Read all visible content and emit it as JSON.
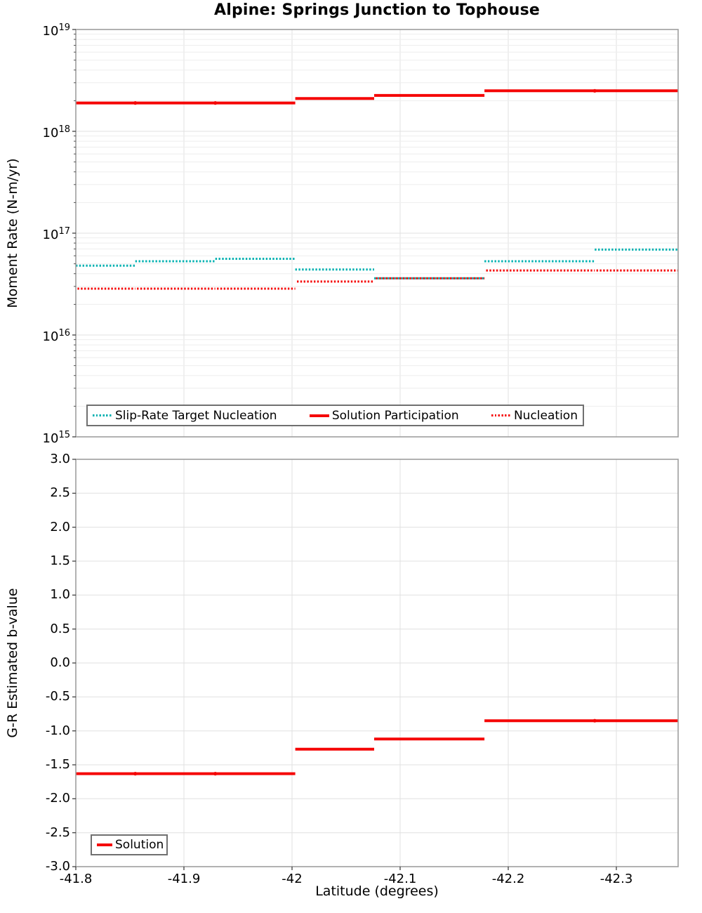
{
  "title": "Alpine: Springs Junction to Tophouse",
  "colors": {
    "solution_red": "#f50505",
    "target_teal": "#00b1b1",
    "grid_major": "#e0e0e0",
    "grid_minor": "#eeeeee",
    "spine": "#9e9e9e",
    "tick_mark": "#333333",
    "legend_border": "#707070",
    "text": "#000000"
  },
  "x_axis": {
    "label": "Latitude (degrees)",
    "tick_labels": [
      "-41.8",
      "-41.9",
      "-42",
      "-42.1",
      "-42.2",
      "-42.3"
    ],
    "tick_values": [
      -41.8,
      -41.9,
      -42.0,
      -42.1,
      -42.2,
      -42.3
    ],
    "range": [
      -41.8,
      -42.357
    ]
  },
  "chart_data": [
    {
      "type": "line",
      "title": "Alpine: Springs Junction to Tophouse",
      "ylabel": "Moment Rate (N-m/yr)",
      "yscale": "log",
      "ylim": [
        1000000000000000.0,
        1e+19
      ],
      "y_tick_exponents": [
        19,
        18,
        17,
        16,
        15
      ],
      "grid": true,
      "legend_position": "lower-left-inside",
      "bin_edges_latitude": [
        -41.8,
        -41.855,
        -41.929,
        -42.003,
        -42.076,
        -42.178,
        -42.28,
        -42.357
      ],
      "series": [
        {
          "name": "Slip-Rate Target Nucleation",
          "style": "dotted",
          "color_key": "target_teal",
          "values_per_bin": [
            4.8e+16,
            5.3e+16,
            5.6e+16,
            4.4e+16,
            3.6e+16,
            5.3e+16,
            6.9e+16
          ]
        },
        {
          "name": "Solution Participation",
          "style": "solid",
          "color_key": "solution_red",
          "values_per_bin": [
            1.9e+18,
            1.9e+18,
            1.9e+18,
            2.1e+18,
            2.25e+18,
            2.5e+18,
            2.5e+18
          ]
        },
        {
          "name": "Nucleation",
          "style": "dotted",
          "color_key": "solution_red",
          "values_per_bin": [
            2.85e+16,
            2.85e+16,
            2.85e+16,
            3.35e+16,
            3.6e+16,
            4.3e+16,
            4.3e+16
          ]
        }
      ]
    },
    {
      "type": "line",
      "ylabel": "G-R Estimated b-value",
      "xlabel": "Latitude (degrees)",
      "ylim": [
        -3.0,
        3.0
      ],
      "y_tick_labels": [
        "3.0",
        "2.5",
        "2.0",
        "1.5",
        "1.0",
        "0.5",
        "0.0",
        "-0.5",
        "-1.0",
        "-1.5",
        "-2.0",
        "-2.5",
        "-3.0"
      ],
      "grid": true,
      "legend_position": "lower-left-inside",
      "bin_edges_latitude": [
        -41.8,
        -41.855,
        -41.929,
        -42.003,
        -42.076,
        -42.178,
        -42.28,
        -42.357
      ],
      "series": [
        {
          "name": "Solution",
          "style": "solid",
          "color_key": "solution_red",
          "values_per_bin": [
            -1.63,
            -1.63,
            -1.63,
            -1.27,
            -1.12,
            -0.85,
            -0.85
          ]
        }
      ]
    }
  ]
}
